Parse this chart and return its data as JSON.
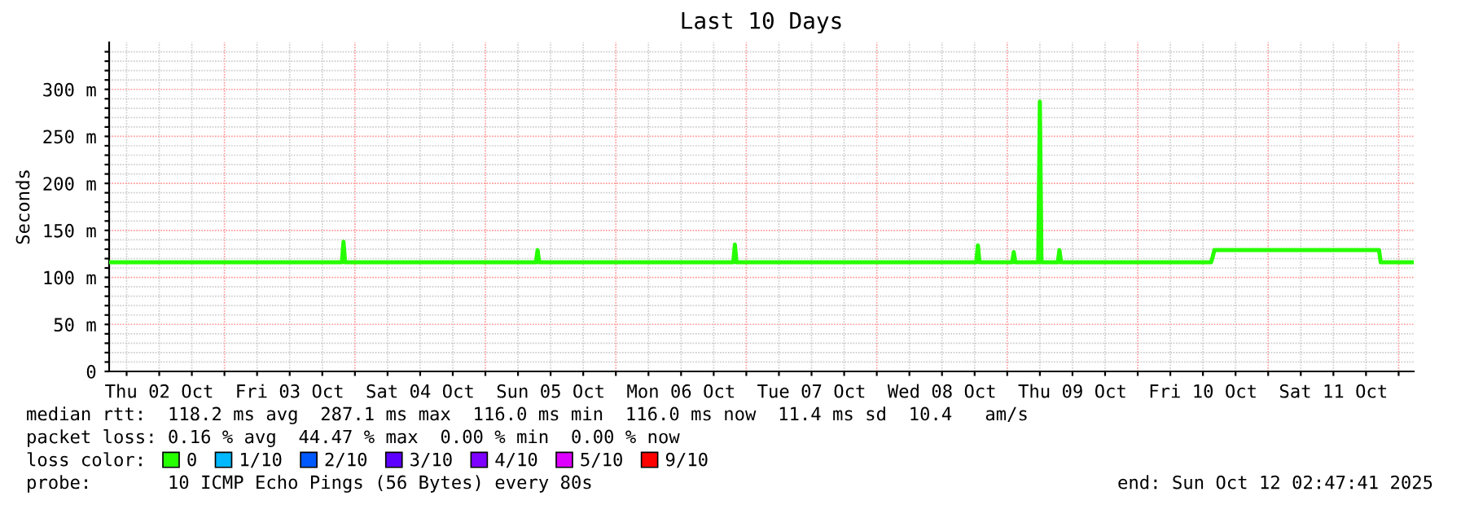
{
  "chart_data": {
    "type": "line",
    "title": "Last 10 Days",
    "ylabel": "Seconds",
    "xlim": [
      "2025-10-02T02:47",
      "2025-10-12T02:47"
    ],
    "xticks": [
      {
        "value": "2025-10-02T06:00",
        "label": null
      },
      {
        "value": "2025-10-02T12:00",
        "label": "Thu 02 Oct"
      },
      {
        "value": "2025-10-02T18:00",
        "label": null
      },
      {
        "value": "2025-10-03T00:00",
        "label": null
      },
      {
        "value": "2025-10-03T06:00",
        "label": null
      },
      {
        "value": "2025-10-03T12:00",
        "label": "Fri 03 Oct"
      },
      {
        "value": "2025-10-03T18:00",
        "label": null
      },
      {
        "value": "2025-10-04T00:00",
        "label": null
      },
      {
        "value": "2025-10-04T06:00",
        "label": null
      },
      {
        "value": "2025-10-04T12:00",
        "label": "Sat 04 Oct"
      },
      {
        "value": "2025-10-04T18:00",
        "label": null
      },
      {
        "value": "2025-10-05T00:00",
        "label": null
      },
      {
        "value": "2025-10-05T06:00",
        "label": null
      },
      {
        "value": "2025-10-05T12:00",
        "label": "Sun 05 Oct"
      },
      {
        "value": "2025-10-05T18:00",
        "label": null
      },
      {
        "value": "2025-10-06T00:00",
        "label": null
      },
      {
        "value": "2025-10-06T06:00",
        "label": null
      },
      {
        "value": "2025-10-06T12:00",
        "label": "Mon 06 Oct"
      },
      {
        "value": "2025-10-06T18:00",
        "label": null
      },
      {
        "value": "2025-10-07T00:00",
        "label": null
      },
      {
        "value": "2025-10-07T06:00",
        "label": null
      },
      {
        "value": "2025-10-07T12:00",
        "label": "Tue 07 Oct"
      },
      {
        "value": "2025-10-07T18:00",
        "label": null
      },
      {
        "value": "2025-10-08T00:00",
        "label": null
      },
      {
        "value": "2025-10-08T06:00",
        "label": null
      },
      {
        "value": "2025-10-08T12:00",
        "label": "Wed 08 Oct"
      },
      {
        "value": "2025-10-08T18:00",
        "label": null
      },
      {
        "value": "2025-10-09T00:00",
        "label": null
      },
      {
        "value": "2025-10-09T06:00",
        "label": null
      },
      {
        "value": "2025-10-09T12:00",
        "label": "Thu 09 Oct"
      },
      {
        "value": "2025-10-09T18:00",
        "label": null
      },
      {
        "value": "2025-10-10T00:00",
        "label": null
      },
      {
        "value": "2025-10-10T06:00",
        "label": null
      },
      {
        "value": "2025-10-10T12:00",
        "label": "Fri 10 Oct"
      },
      {
        "value": "2025-10-10T18:00",
        "label": null
      },
      {
        "value": "2025-10-11T00:00",
        "label": null
      },
      {
        "value": "2025-10-11T06:00",
        "label": null
      },
      {
        "value": "2025-10-11T12:00",
        "label": "Sat 11 Oct"
      },
      {
        "value": "2025-10-11T18:00",
        "label": null
      },
      {
        "value": "2025-10-12T00:00",
        "label": null
      }
    ],
    "ylim": [
      0,
      350
    ],
    "yticks": [
      {
        "value": 0,
        "label": "0"
      },
      {
        "value": 10,
        "label": null
      },
      {
        "value": 20,
        "label": null
      },
      {
        "value": 30,
        "label": null
      },
      {
        "value": 40,
        "label": null
      },
      {
        "value": 50,
        "label": "50 m"
      },
      {
        "value": 60,
        "label": null
      },
      {
        "value": 70,
        "label": null
      },
      {
        "value": 80,
        "label": null
      },
      {
        "value": 90,
        "label": null
      },
      {
        "value": 100,
        "label": "100 m"
      },
      {
        "value": 110,
        "label": null
      },
      {
        "value": 120,
        "label": null
      },
      {
        "value": 130,
        "label": null
      },
      {
        "value": 140,
        "label": null
      },
      {
        "value": 150,
        "label": "150 m"
      },
      {
        "value": 160,
        "label": null
      },
      {
        "value": 170,
        "label": null
      },
      {
        "value": 180,
        "label": null
      },
      {
        "value": 190,
        "label": null
      },
      {
        "value": 200,
        "label": "200 m"
      },
      {
        "value": 210,
        "label": null
      },
      {
        "value": 220,
        "label": null
      },
      {
        "value": 230,
        "label": null
      },
      {
        "value": 240,
        "label": null
      },
      {
        "value": 250,
        "label": "250 m"
      },
      {
        "value": 260,
        "label": null
      },
      {
        "value": 270,
        "label": null
      },
      {
        "value": 280,
        "label": null
      },
      {
        "value": 290,
        "label": null
      },
      {
        "value": 300,
        "label": "300 m"
      },
      {
        "value": 310,
        "label": null
      },
      {
        "value": 320,
        "label": null
      },
      {
        "value": 330,
        "label": null
      },
      {
        "value": 340,
        "label": null
      }
    ],
    "grid": true,
    "legend": "bottom",
    "legend_title": "loss color:",
    "marker": "none",
    "line_style": "solid",
    "series": [
      {
        "name": "0",
        "color": "#26ff00",
        "x": [
          "2025-10-02T02:47",
          "2025-10-03T21:36",
          "2025-10-03T21:54",
          "2025-10-03T22:12",
          "2025-10-05T09:18",
          "2025-10-05T09:36",
          "2025-10-05T09:54",
          "2025-10-06T21:36",
          "2025-10-06T21:54",
          "2025-10-06T22:12",
          "2025-10-08T18:18",
          "2025-10-08T18:36",
          "2025-10-08T18:54",
          "2025-10-09T00:54",
          "2025-10-09T01:12",
          "2025-10-09T01:30",
          "2025-10-09T05:42",
          "2025-10-09T06:00",
          "2025-10-09T06:18",
          "2025-10-09T09:18",
          "2025-10-09T09:36",
          "2025-10-09T09:54",
          "2025-10-10T13:30",
          "2025-10-10T13:48",
          "2025-10-10T14:06",
          "2025-10-11T20:24",
          "2025-10-11T20:42",
          "2025-10-12T02:47"
        ],
        "values": [
          116,
          116,
          138,
          116,
          116,
          129,
          116,
          116,
          135,
          116,
          116,
          134,
          116,
          116,
          127,
          116,
          116,
          287,
          116,
          116,
          129,
          116,
          116,
          122,
          129,
          129,
          116,
          116
        ]
      },
      {
        "name": "1/10",
        "color": "#00b8ff"
      },
      {
        "name": "2/10",
        "color": "#0059ff"
      },
      {
        "name": "3/10",
        "color": "#5e00ff"
      },
      {
        "name": "4/10",
        "color": "#7e00ff"
      },
      {
        "name": "5/10",
        "color": "#dd00ff"
      },
      {
        "name": "9/10",
        "color": "#ff0000"
      }
    ],
    "annotations": [
      "median rtt:  118.2 ms avg  287.1 ms max  116.0 ms min  116.0 ms now  11.4 ms sd  10.4   am/s",
      "packet loss: 0.16 % avg  44.47 % max  0.00 % min  0.00 % now",
      "probe:       10 ICMP Echo Pings (56 Bytes) every 80s",
      "end: Sun Oct 12 02:47:41 2025"
    ]
  }
}
